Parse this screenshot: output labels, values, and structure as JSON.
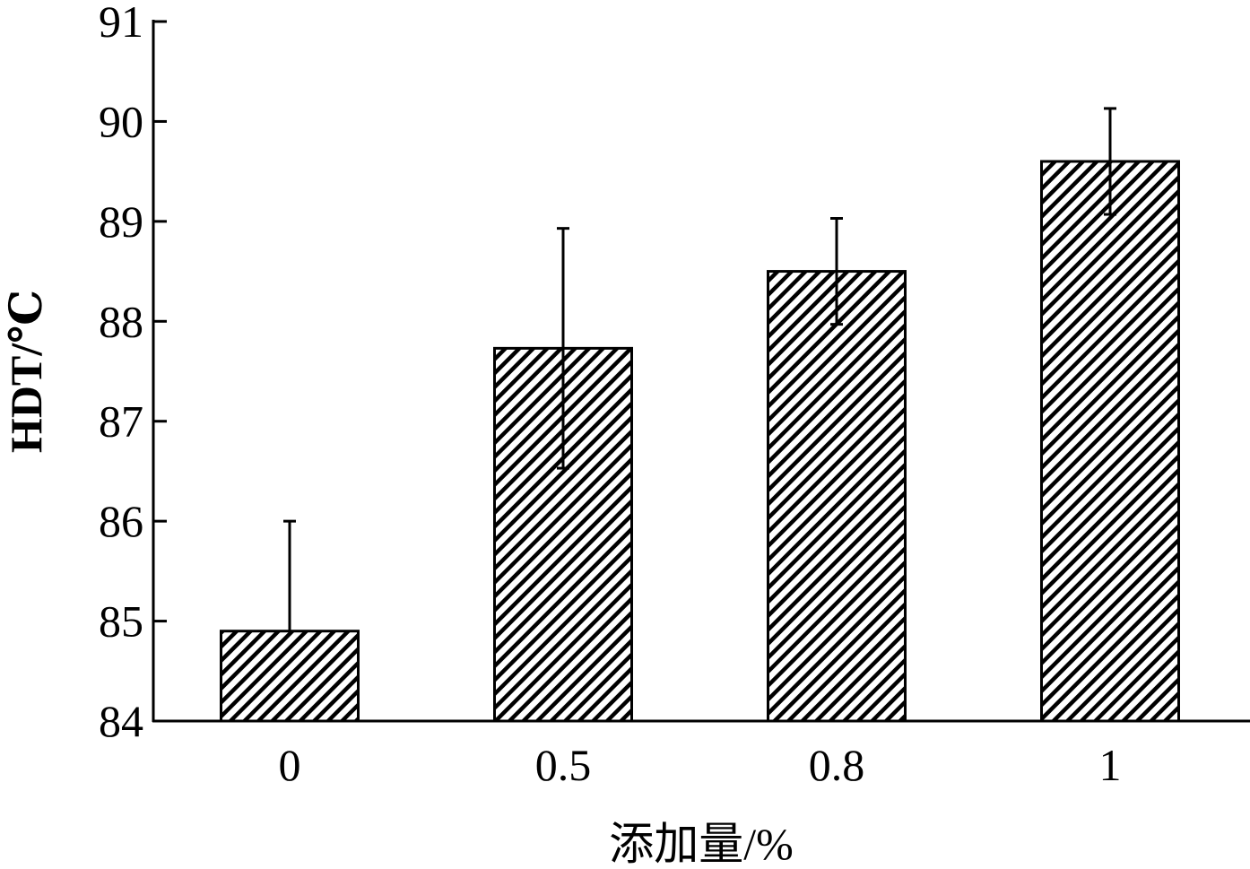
{
  "chart_data": {
    "type": "bar",
    "categories": [
      "0",
      "0.5",
      "0.8",
      "1"
    ],
    "values": [
      84.9,
      87.73,
      88.5,
      89.6
    ],
    "error_plus": [
      1.1,
      1.2,
      0.53,
      0.53
    ],
    "error_minus": [
      0,
      1.2,
      0.53,
      0.53
    ],
    "title": "",
    "xlabel": "添加量/%",
    "ylabel": "HDT/℃",
    "ylim": [
      84,
      91
    ],
    "yticks": [
      84,
      85,
      86,
      87,
      88,
      89,
      90,
      91
    ],
    "ytick_labels": [
      "84",
      "85",
      "86",
      "87",
      "88",
      "89",
      "90",
      "91"
    ],
    "bar_fill": "hatched diagonal",
    "bar_color": "#000000",
    "grid": false,
    "legend": "none"
  }
}
